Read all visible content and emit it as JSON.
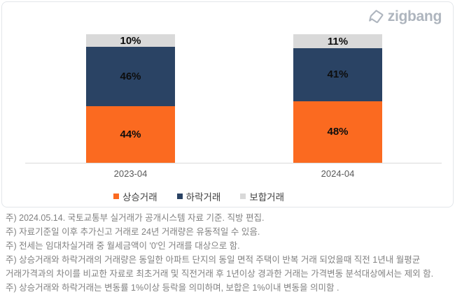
{
  "brand": {
    "logo_text": "zigbang"
  },
  "chart_data": {
    "type": "bar",
    "stacked": true,
    "unit": "%",
    "categories": [
      "2023-04",
      "2024-04"
    ],
    "series": [
      {
        "name": "상승거래",
        "color": "#fb6a20",
        "values": [
          44,
          48
        ]
      },
      {
        "name": "하락거래",
        "color": "#2a4364",
        "values": [
          46,
          41
        ]
      },
      {
        "name": "보합거래",
        "color": "#d9d9d9",
        "values": [
          10,
          11
        ]
      }
    ],
    "ylim": [
      0,
      100
    ],
    "grid": false,
    "legend_position": "bottom",
    "value_labels": "inside-center",
    "colors": {
      "axis_line": "#d9d9d9",
      "value_label_text": "#0d0d0d",
      "category_label_text": "#595959",
      "legend_text": "#404040"
    }
  },
  "notes": {
    "lines": [
      "주) 2024.05.14. 국토교통부 실거래가 공개시스템 자료 기준. 직방 편집.",
      "주) 자료기준일 이후 추가신고 거래로 24년 거래량은 유동적일 수 있음.",
      "주) 전세는 임대차실거래 중 월세금액이 '0'인 거래를 대상으로 함.",
      "주) 상승거래와 하락거래의 거래량은 동일한 아파트 단지의 동일 면적 주택이 반복 거래 되었을때 직전 1년내 월평균",
      "거래가격과의 차이를 비교한 자료로 최초거래 및 직전거래 후 1년이상 경과한 거래는 가격변동 분석대상에서는 제외 함.",
      "주) 상승거래와 하락거래는 변동률 1%이상 등락을 의미하며, 보합은 1%이내 변동을 의미함 ."
    ]
  }
}
